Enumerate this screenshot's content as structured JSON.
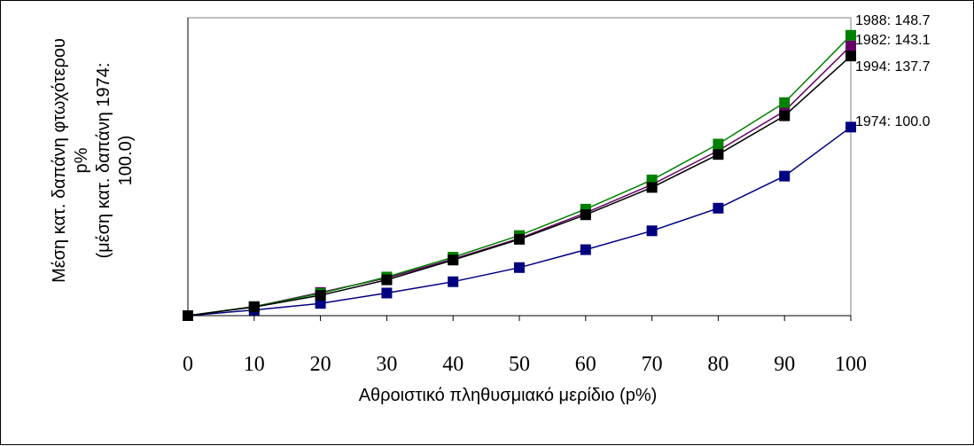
{
  "chart_data": {
    "type": "line",
    "title": "",
    "xlabel": "Αθροιστικό πληθυσμιακό μερίδιο (p%)",
    "ylabel_lines": [
      "Μέση κατ. δαπάνη φτωχότερου",
      "p%",
      "(μέση κατ. δαπάνη 1974:",
      "100.0)"
    ],
    "x": [
      0,
      10,
      20,
      30,
      40,
      50,
      60,
      70,
      80,
      90,
      100
    ],
    "xlim": [
      0,
      100
    ],
    "ylim": [
      0,
      158
    ],
    "y_tick_labels_shown": false,
    "grid": false,
    "legend": "none",
    "series": [
      {
        "name": "1974",
        "color": "#000080",
        "marker": "square",
        "values": [
          0,
          3,
          6.5,
          12,
          18,
          25.5,
          35,
          45,
          57,
          74,
          100
        ],
        "end_label": "1974: 100.0"
      },
      {
        "name": "1982",
        "color": "#660066",
        "marker": "square",
        "values": [
          0,
          4.8,
          12.3,
          20,
          30,
          41,
          54.5,
          69.5,
          87.5,
          108.5,
          143.1
        ],
        "end_label": "1982: 143.1"
      },
      {
        "name": "1988",
        "color": "#008000",
        "marker": "square",
        "values": [
          0,
          4.8,
          11.8,
          20.5,
          31,
          42.5,
          56.5,
          72,
          91,
          113,
          148.7
        ],
        "end_label": "1988: 148.7"
      },
      {
        "name": "1994",
        "color": "#000000",
        "marker": "square",
        "values": [
          0,
          4.6,
          10.8,
          19,
          29.5,
          40.5,
          53.5,
          68,
          85.5,
          106,
          137.7
        ],
        "end_label": "1994: 137.7"
      }
    ]
  }
}
